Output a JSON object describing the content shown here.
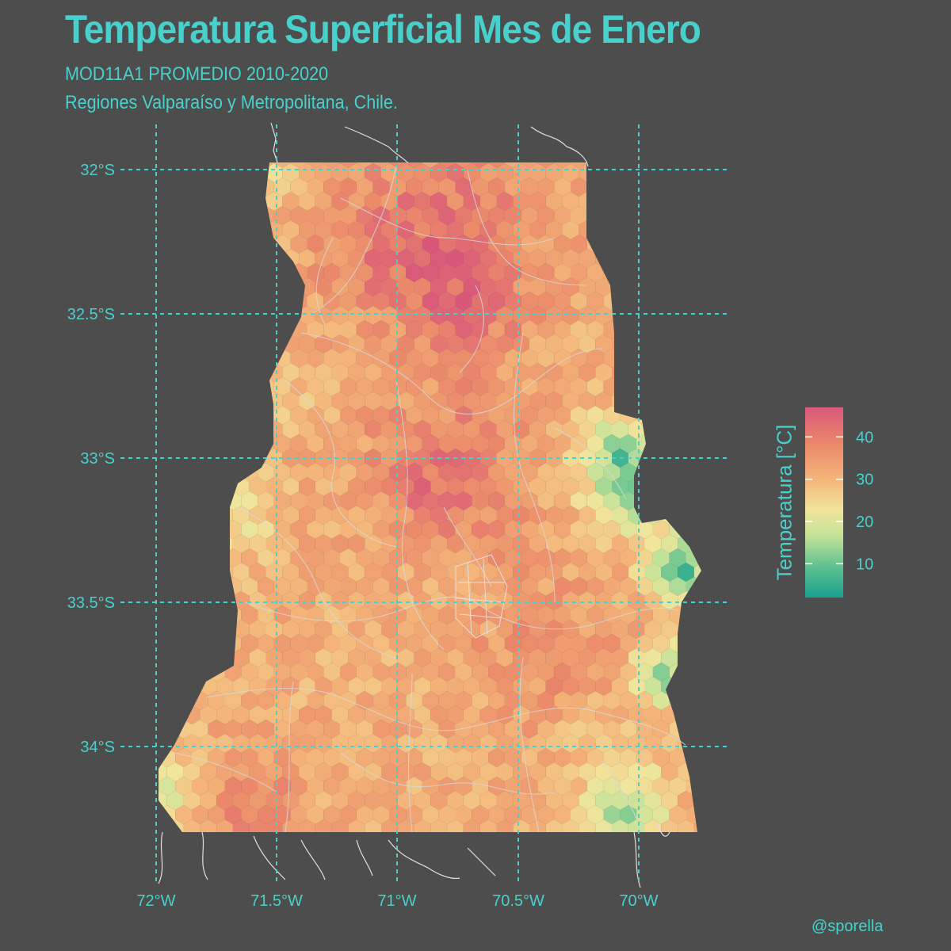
{
  "title": "Temperatura Superficial Mes de Enero",
  "subtitle_line1": "MOD11A1 PROMEDIO 2010-2020",
  "subtitle_line2": "Regiones Valparaíso y Metropolitana, Chile.",
  "caption": "@sporella",
  "colors": {
    "background": "#4d4d4d",
    "text": "#48d1cc",
    "gridline": "#48d1cc",
    "boundaries": "#d9d9d9"
  },
  "axes": {
    "x_ticks": [
      "72°W",
      "71.5°W",
      "71°W",
      "70.5°W",
      "70°W"
    ],
    "y_ticks": [
      "32°S",
      "32.5°S",
      "33°S",
      "33.5°S",
      "34°S"
    ]
  },
  "legend": {
    "title": "Temperatura [°C]",
    "ticks": [
      "10",
      "20",
      "30",
      "40"
    ],
    "range": [
      2,
      47
    ],
    "palette": [
      "#1a9f8f",
      "#5dc18f",
      "#c7e39a",
      "#f1e59c",
      "#f4b57a",
      "#eb8a6a",
      "#d9587a"
    ]
  },
  "map": {
    "type": "hexbin",
    "variable": "land surface temperature, January mean",
    "hotspots": [
      "Santiago basin",
      "north-central valleys",
      "south-west coastal hills"
    ],
    "cold_zones": [
      "Andes eastern border",
      "coastal fringe"
    ]
  }
}
